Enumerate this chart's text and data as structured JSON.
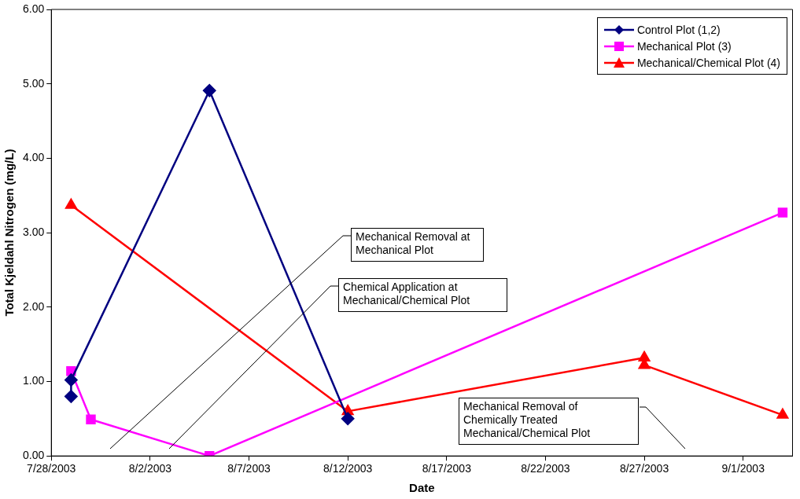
{
  "chart_data": {
    "type": "line",
    "xlabel": "Date",
    "ylabel": "Total Kjeldahl Nitrogen (mg/L)",
    "xlim": [
      "2003-07-28",
      "2003-09-03T12:00"
    ],
    "xticks": [
      {
        "value": "2003-07-28",
        "label": "7/28/2003"
      },
      {
        "value": "2003-08-02",
        "label": "8/2/2003"
      },
      {
        "value": "2003-08-07",
        "label": "8/7/2003"
      },
      {
        "value": "2003-08-12",
        "label": "8/12/2003"
      },
      {
        "value": "2003-08-17",
        "label": "8/17/2003"
      },
      {
        "value": "2003-08-22",
        "label": "8/22/2003"
      },
      {
        "value": "2003-08-27",
        "label": "8/27/2003"
      },
      {
        "value": "2003-09-01",
        "label": "9/1/2003"
      }
    ],
    "ylim": [
      0,
      6
    ],
    "yticks": [
      {
        "value": 0,
        "label": "0.00"
      },
      {
        "value": 1,
        "label": "1.00"
      },
      {
        "value": 2,
        "label": "2.00"
      },
      {
        "value": 3,
        "label": "3.00"
      },
      {
        "value": 4,
        "label": "4.00"
      },
      {
        "value": 5,
        "label": "5.00"
      },
      {
        "value": 6,
        "label": "6.00"
      }
    ],
    "grid": false,
    "legend": "top right",
    "series": [
      {
        "name": "Control Plot (1,2)",
        "color": "#000080",
        "marker": "diamond",
        "x": [
          "2003-07-29",
          "2003-07-29",
          "2003-08-05",
          "2003-08-12"
        ],
        "values": [
          0.8,
          1.02,
          4.91,
          0.5
        ]
      },
      {
        "name": "Mechanical Plot (3)",
        "color": "#ff00ff",
        "marker": "square",
        "x": [
          "2003-07-29",
          "2003-07-30",
          "2003-08-05",
          "2003-09-03"
        ],
        "values": [
          1.14,
          0.49,
          0,
          3.27
        ]
      },
      {
        "name": "Mechanical/Chemical Plot (4)",
        "color": "#ff0000",
        "marker": "triangle",
        "x": [
          "2003-07-29",
          "2003-08-12",
          "2003-08-27",
          "2003-08-27",
          "2003-09-03"
        ],
        "values": [
          3.37,
          0.6,
          1.32,
          1.22,
          0.55
        ]
      }
    ],
    "annotations": [
      "Mechanical Removal at Mechanical Plot",
      "Chemical Application at Mechanical/Chemical Plot",
      "Mechanical Removal of Chemically Treated Mechanical/Chemical Plot"
    ]
  }
}
